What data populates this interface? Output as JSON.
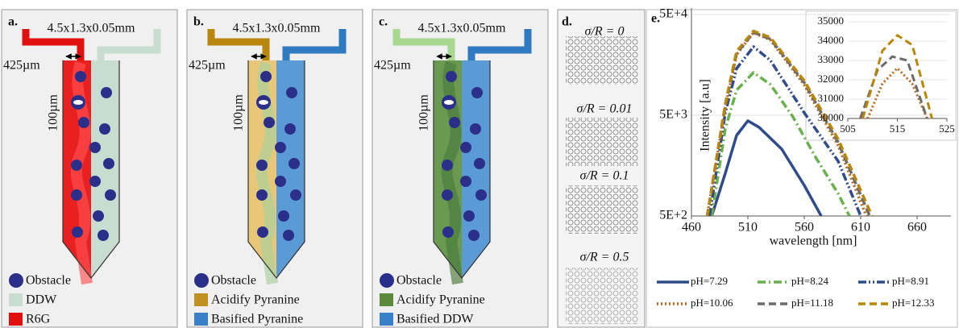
{
  "panels": [
    {
      "label": "a.",
      "dimensions": "4.5x1.3x0.05mm",
      "width": "425µm",
      "spacing": "100µm",
      "legend": [
        "Obstacle",
        "DDW",
        "R6G"
      ]
    },
    {
      "label": "b.",
      "dimensions": "4.5x1.3x0.05mm",
      "width": "425µm",
      "spacing": "100µm",
      "legend": [
        "Obstacle",
        "Acidify Pyranine",
        "Basified Pyranine"
      ]
    },
    {
      "label": "c.",
      "dimensions": "4.5x1.3x0.05mm",
      "width": "425µm",
      "spacing": "100µm",
      "legend": [
        "Obstacle",
        "Acidify Pyranine",
        "Basified DDW"
      ]
    }
  ],
  "lattice": {
    "label": "d.",
    "cases": [
      "σ/R = 0",
      "σ/R = 0.01",
      "σ/R = 0.1",
      "σ/R = 0.5"
    ]
  },
  "chart_label": "e.",
  "chart_data": [
    {
      "type": "line",
      "ylabel": "Intensity [a.u]",
      "xlabel": "wavelength [nm]",
      "log_y": true,
      "xlim": [
        460,
        690
      ],
      "xticks": [
        460,
        510,
        560,
        610,
        660
      ],
      "ylim": [
        500,
        50000
      ],
      "yticks": [
        {
          "value": 500,
          "label": "5E+2"
        },
        {
          "value": 5000,
          "label": "5E+3"
        },
        {
          "value": 50000,
          "label": "5E+4"
        }
      ],
      "series": [
        {
          "name": "pH=7.29",
          "color": "#2f4b8a",
          "dash": "solid",
          "x": [
            478,
            490,
            500,
            510,
            520,
            540,
            560,
            575
          ],
          "values": [
            500,
            1327,
            3155,
            4400,
            3793,
            2306,
            1007,
            500
          ]
        },
        {
          "name": "pH=8.24",
          "color": "#6ab04c",
          "dash": "dash-dot",
          "x": [
            478,
            490,
            500,
            515,
            530,
            550,
            570,
            590,
            600
          ],
          "values": [
            500,
            3655,
            8853,
            13270,
            10100,
            4810,
            1917,
            835,
            500
          ]
        },
        {
          "name": "pH=8.91",
          "color": "#2f4b8a",
          "dash": "dash-dot-dot",
          "x": [
            476,
            490,
            500,
            515,
            530,
            560,
            590,
            610
          ],
          "values": [
            500,
            5284,
            14550,
            23930,
            17500,
            5284,
            1753,
            500
          ]
        },
        {
          "name": "pH=10.06",
          "color": "#b5651d",
          "dash": "dotted",
          "x": [
            474,
            490,
            500,
            515,
            530,
            560,
            590,
            615
          ],
          "values": [
            500,
            6000,
            20000,
            33000,
            28000,
            10000,
            2500,
            500
          ]
        },
        {
          "name": "pH=11.18",
          "color": "#6b6b6b",
          "dash": "dashed",
          "x": [
            474,
            490,
            500,
            515,
            530,
            560,
            590,
            618
          ],
          "values": [
            500,
            6200,
            20500,
            33300,
            28500,
            10500,
            2700,
            500
          ]
        },
        {
          "name": "pH=12.33",
          "color": "#b8860b",
          "dash": "dashed",
          "x": [
            474,
            490,
            500,
            515,
            530,
            560,
            590,
            620
          ],
          "values": [
            500,
            6500,
            21500,
            34300,
            29500,
            11000,
            2900,
            500
          ]
        }
      ]
    },
    {
      "type": "line",
      "inset": true,
      "xlim": [
        505,
        525
      ],
      "xticks": [
        505,
        515,
        525
      ],
      "ylim": [
        30000,
        35000
      ],
      "yticks": [
        30000,
        31000,
        32000,
        33000,
        34000,
        35000
      ],
      "series": [
        {
          "color": "#b5651d",
          "dash": "dotted",
          "x": [
            509,
            512,
            515,
            518,
            521
          ],
          "values": [
            30000,
            31800,
            32600,
            31800,
            30000
          ]
        },
        {
          "color": "#6b6b6b",
          "dash": "dashed",
          "x": [
            507.5,
            511,
            514,
            517,
            521
          ],
          "values": [
            30000,
            32500,
            33200,
            33000,
            30000
          ]
        },
        {
          "color": "#b8860b",
          "dash": "dashed",
          "x": [
            508,
            512,
            515,
            518,
            522
          ],
          "values": [
            30000,
            33500,
            34300,
            33800,
            30000
          ]
        }
      ]
    }
  ]
}
